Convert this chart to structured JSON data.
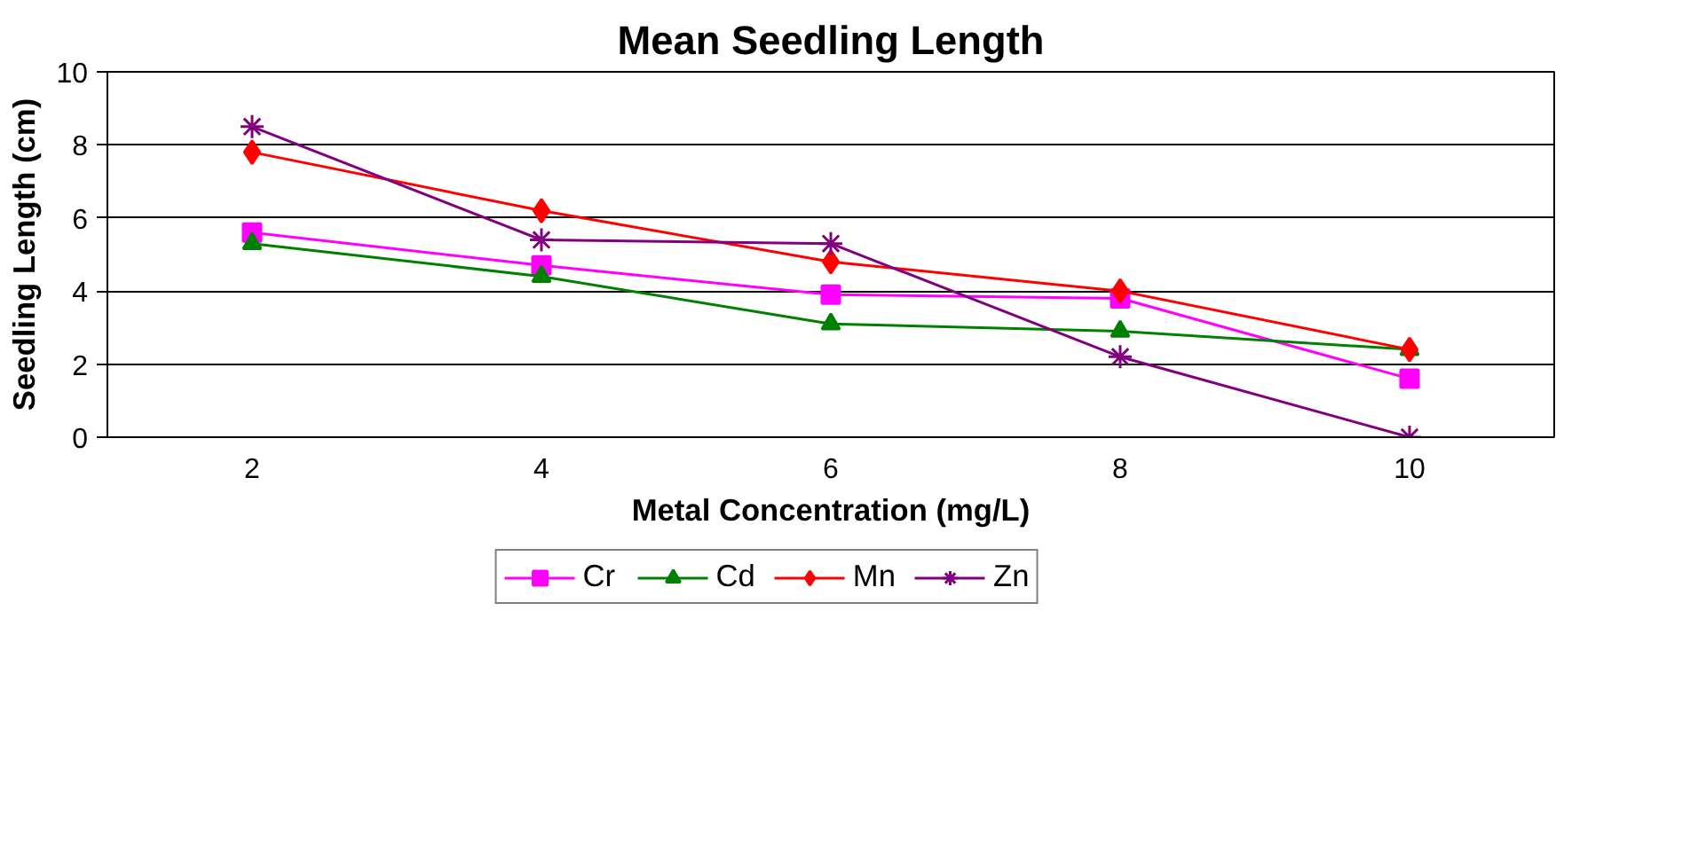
{
  "chart_data": {
    "type": "line",
    "title": "Mean Seedling Length",
    "xlabel": "Metal Concentration (mg/L)",
    "ylabel": "Seedling Length (cm)",
    "categories": [
      "2",
      "4",
      "6",
      "8",
      "10"
    ],
    "series": [
      {
        "name": "Cr",
        "color": "#ff00ff",
        "marker": "square",
        "values": [
          5.6,
          4.7,
          3.9,
          3.8,
          1.6
        ]
      },
      {
        "name": "Cd",
        "color": "#008000",
        "marker": "triangle",
        "values": [
          5.3,
          4.4,
          3.1,
          2.9,
          2.4
        ]
      },
      {
        "name": "Mn",
        "color": "#ff0000",
        "marker": "diamond",
        "values": [
          7.8,
          6.2,
          4.8,
          4.0,
          2.4
        ]
      },
      {
        "name": "Zn",
        "color": "#800080",
        "marker": "cross",
        "values": [
          8.5,
          5.4,
          5.3,
          2.2,
          0
        ]
      }
    ],
    "ylim": [
      0,
      10
    ],
    "yticks": [
      0,
      2,
      4,
      6,
      8,
      10
    ],
    "grid": "y",
    "legend": "bottom",
    "line_style": "solid"
  }
}
